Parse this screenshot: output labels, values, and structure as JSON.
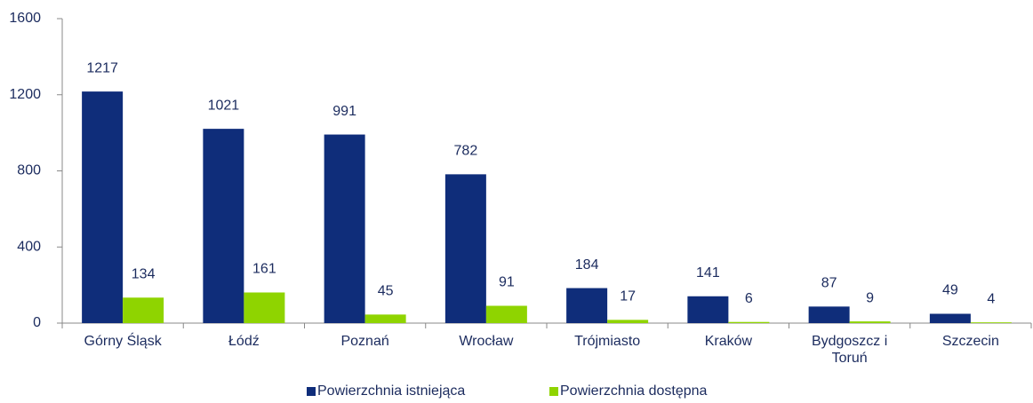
{
  "chart_data": {
    "type": "bar",
    "categories": [
      "Górny Śląsk",
      "Łódź",
      "Poznań",
      "Wrocław",
      "Trójmiasto",
      "Kraków",
      "Bydgoszcz i Toruń",
      "Szczecin"
    ],
    "series": [
      {
        "name": "Powierzchnia istniejąca",
        "color": "#0f2d7a",
        "values": [
          1217,
          1021,
          991,
          782,
          184,
          141,
          87,
          49
        ]
      },
      {
        "name": "Powierzchnia dostępna",
        "color": "#8fd400",
        "values": [
          134,
          161,
          45,
          91,
          17,
          6,
          9,
          4
        ]
      }
    ],
    "ylim": [
      0,
      1600
    ],
    "yticks": [
      0,
      400,
      800,
      1200,
      1600
    ],
    "legend": "bottom"
  }
}
